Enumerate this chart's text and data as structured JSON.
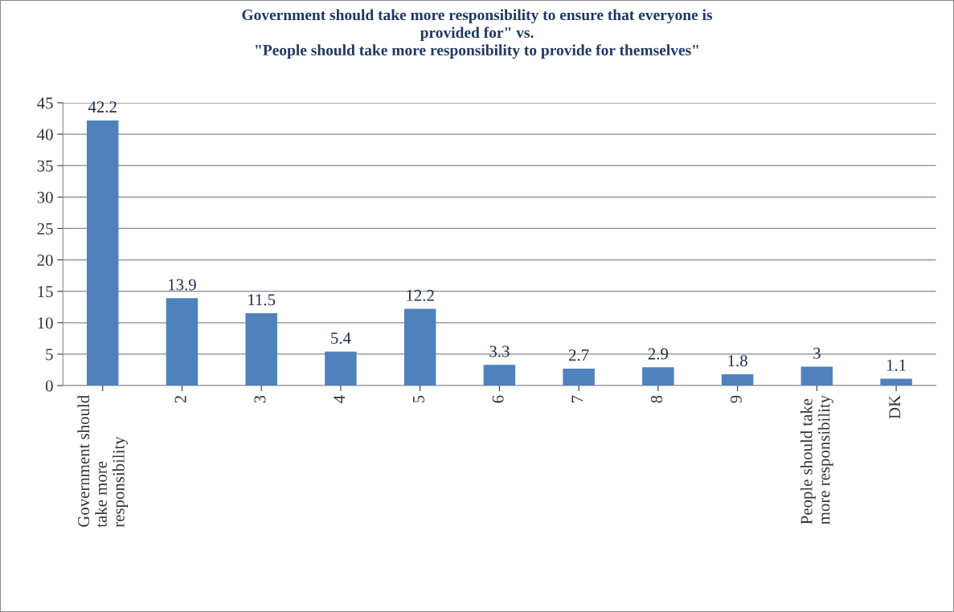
{
  "chart_data": {
    "type": "bar",
    "title": "Government should take more responsibility to ensure that everyone is\nprovided for\" vs.\n\"People should take more responsibility to provide for themselves\"",
    "categories": [
      "Government should\ntake more\nresponsibility",
      "2",
      "3",
      "4",
      "5",
      "6",
      "7",
      "8",
      "9",
      "People should take\nmore responsibility",
      "DK"
    ],
    "values": [
      42.2,
      13.9,
      11.5,
      5.4,
      12.2,
      3.3,
      2.7,
      2.9,
      1.8,
      3,
      1.1
    ],
    "color": "#4f81bd",
    "ylim": [
      0,
      45
    ],
    "yticks": [
      0,
      5,
      10,
      15,
      20,
      25,
      30,
      35,
      40,
      45
    ],
    "grid": "y",
    "data_labels": true
  }
}
